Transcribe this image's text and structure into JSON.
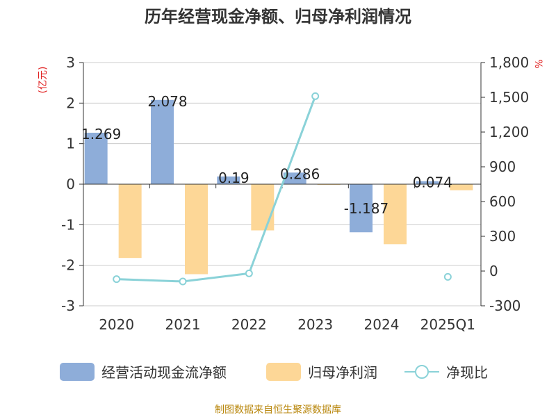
{
  "title": "历年经营现金净额、归母净利润情况",
  "left_unit": "(亿元)",
  "right_unit": "%",
  "source": "制图数据来自恒生聚源数据库",
  "colors": {
    "bar_primary": "#8eadd9",
    "bar_secondary": "#fdd797",
    "line": "#8ad2d8",
    "axis": "#333333",
    "grid": "#cccccc",
    "title": "#333333",
    "unit": "#e02020",
    "source": "#b8860b"
  },
  "chart_data": {
    "type": "bar",
    "title": "历年经营现金净额、归母净利润情况",
    "categories": [
      "2020",
      "2021",
      "2022",
      "2023",
      "2024",
      "2025Q1"
    ],
    "series": [
      {
        "name": "经营活动现金流净额",
        "type": "bar",
        "axis": "left",
        "values": [
          1.269,
          2.078,
          0.19,
          0.286,
          -1.187,
          0.074
        ],
        "labels": [
          "1.269",
          "2.078",
          "0.19",
          "0.286",
          "-1.187",
          "0.074"
        ]
      },
      {
        "name": "归母净利润",
        "type": "bar",
        "axis": "left",
        "values": [
          -1.82,
          -2.22,
          -1.14,
          -0.02,
          -1.48,
          -0.15
        ]
      },
      {
        "name": "净现比",
        "type": "line",
        "axis": "right",
        "values": [
          -70,
          -90,
          -20,
          1510,
          null,
          -50
        ]
      }
    ],
    "left_axis": {
      "min": -3,
      "max": 3,
      "ticks": [
        "-3",
        "-2",
        "-1",
        "0",
        "1",
        "2",
        "3"
      ]
    },
    "right_axis": {
      "min": -300,
      "max": 1800,
      "ticks": [
        "-300",
        "0",
        "300",
        "600",
        "900",
        "1,200",
        "1,500",
        "1,800"
      ]
    },
    "grid": true,
    "legend_position": "bottom"
  }
}
